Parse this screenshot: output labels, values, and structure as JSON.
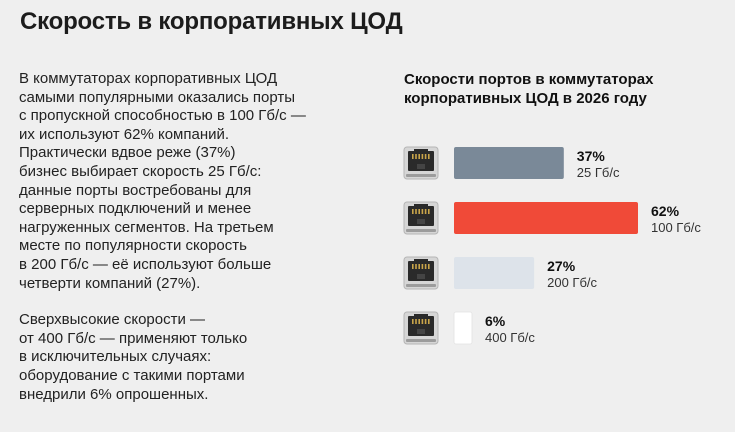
{
  "header": {
    "title": "Скорость в корпоративных ЦОД"
  },
  "article": {
    "paragraphs": [
      "В коммутаторах корпоративных ЦОД\nсамыми популярными оказались порты\nс пропускной способностью в 100 Гб/с —\nих используют 62% компаний.\nПрактически вдвое реже (37%)\nбизнес выбирает скорость 25 Гб/с:\nданные порты востребованы для\nсерверных подключений и менее\nнагруженных сегментов. На третьем\nместе по популярности скорость\nв 200 Гб/с — её используют больше\nчетверти компаний (27%).",
      "Сверхвысокие скорости —\nот 400 Гб/с — применяют только\nв исключительных случаях:\nоборудование с такими портами\nвнедрили 6% опрошенных."
    ]
  },
  "chart_data": {
    "type": "bar",
    "orientation": "horizontal",
    "title": "Скорости портов в коммутаторах\nкорпоративных ЦОД в 2026 году",
    "categories": [
      "25 Гб/с",
      "100 Гб/с",
      "200 Гб/с",
      "400 Гб/с"
    ],
    "values": [
      37,
      62,
      27,
      6
    ],
    "value_labels": [
      "37%",
      "62%",
      "27%",
      "6%"
    ],
    "bar_colors": [
      "#7a8998",
      "#f04a38",
      "#dde3ea",
      "#ffffff"
    ],
    "row_icon": "ethernet-port-icon",
    "xlim": [
      0,
      62
    ]
  }
}
